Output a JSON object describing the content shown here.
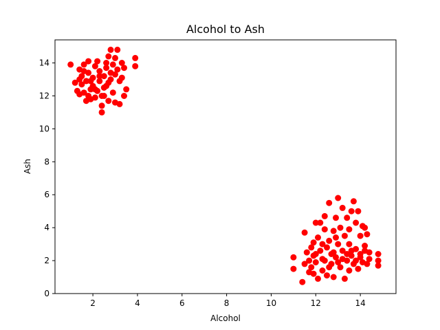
{
  "chart_data": {
    "type": "scatter",
    "title": "Alcohol to Ash",
    "xlabel": "Alcohol",
    "ylabel": "Ash",
    "xlim": [
      0.3,
      15.6
    ],
    "ylim": [
      0,
      15.4
    ],
    "xticks": [
      2,
      4,
      6,
      8,
      10,
      12,
      14
    ],
    "yticks": [
      0,
      2,
      4,
      6,
      8,
      10,
      12,
      14
    ],
    "grid": false,
    "marker_color": "#ff0000",
    "series": [
      {
        "points": [
          [
            1.0,
            13.9
          ],
          [
            1.2,
            12.8
          ],
          [
            1.3,
            12.3
          ],
          [
            1.4,
            13.6
          ],
          [
            1.4,
            12.1
          ],
          [
            1.5,
            13.2
          ],
          [
            1.5,
            12.7
          ],
          [
            1.6,
            13.9
          ],
          [
            1.6,
            12.2
          ],
          [
            1.7,
            11.7
          ],
          [
            1.7,
            12.9
          ],
          [
            1.8,
            13.4
          ],
          [
            1.8,
            14.1
          ],
          [
            1.9,
            12.4
          ],
          [
            1.9,
            11.8
          ],
          [
            2.0,
            13.1
          ],
          [
            2.0,
            12.6
          ],
          [
            2.1,
            13.8
          ],
          [
            2.1,
            11.9
          ],
          [
            2.2,
            12.3
          ],
          [
            2.2,
            14.1
          ],
          [
            2.3,
            12.9
          ],
          [
            2.3,
            13.5
          ],
          [
            2.4,
            12.0
          ],
          [
            2.4,
            11.4
          ],
          [
            2.4,
            11.0
          ],
          [
            2.5,
            13.2
          ],
          [
            2.5,
            12.5
          ],
          [
            2.6,
            14.0
          ],
          [
            2.6,
            13.7
          ],
          [
            2.7,
            12.8
          ],
          [
            2.7,
            11.7
          ],
          [
            2.8,
            14.8
          ],
          [
            2.8,
            13.4
          ],
          [
            2.9,
            12.2
          ],
          [
            2.9,
            13.9
          ],
          [
            3.0,
            14.3
          ],
          [
            3.0,
            11.6
          ],
          [
            3.1,
            14.8
          ],
          [
            3.1,
            13.6
          ],
          [
            3.2,
            12.9
          ],
          [
            3.2,
            11.5
          ],
          [
            3.3,
            14.0
          ],
          [
            3.3,
            13.1
          ],
          [
            3.4,
            13.7
          ],
          [
            3.4,
            12.0
          ],
          [
            3.5,
            12.4
          ],
          [
            3.9,
            14.3
          ],
          [
            3.9,
            13.8
          ],
          [
            1.4,
            13.0
          ],
          [
            1.6,
            13.5
          ],
          [
            1.9,
            12.9
          ],
          [
            2.1,
            12.4
          ],
          [
            2.3,
            13.2
          ],
          [
            2.6,
            12.6
          ],
          [
            2.8,
            13.0
          ],
          [
            3.0,
            13.3
          ],
          [
            2.5,
            12.0
          ],
          [
            1.8,
            12.0
          ],
          [
            2.7,
            14.4
          ]
        ]
      },
      {
        "points": [
          [
            11.0,
            2.2
          ],
          [
            11.0,
            1.5
          ],
          [
            11.4,
            0.7
          ],
          [
            11.5,
            3.7
          ],
          [
            11.5,
            1.8
          ],
          [
            11.6,
            2.5
          ],
          [
            11.7,
            2.0
          ],
          [
            11.7,
            1.3
          ],
          [
            11.8,
            2.8
          ],
          [
            11.8,
            1.6
          ],
          [
            11.9,
            3.1
          ],
          [
            11.9,
            2.3
          ],
          [
            12.0,
            4.3
          ],
          [
            12.0,
            1.9
          ],
          [
            12.1,
            0.9
          ],
          [
            12.1,
            3.4
          ],
          [
            12.2,
            4.3
          ],
          [
            12.2,
            2.6
          ],
          [
            12.3,
            1.4
          ],
          [
            12.3,
            2.1
          ],
          [
            12.4,
            3.9
          ],
          [
            12.4,
            4.7
          ],
          [
            12.5,
            2.8
          ],
          [
            12.5,
            1.1
          ],
          [
            12.6,
            5.5
          ],
          [
            12.6,
            3.2
          ],
          [
            12.7,
            1.8
          ],
          [
            12.7,
            2.4
          ],
          [
            12.8,
            3.8
          ],
          [
            12.8,
            1.0
          ],
          [
            12.9,
            4.6
          ],
          [
            12.9,
            2.2
          ],
          [
            13.0,
            5.8
          ],
          [
            13.0,
            3.0
          ],
          [
            13.1,
            1.6
          ],
          [
            13.1,
            4.0
          ],
          [
            13.2,
            5.2
          ],
          [
            13.2,
            2.6
          ],
          [
            13.3,
            0.9
          ],
          [
            13.3,
            3.5
          ],
          [
            13.4,
            2.0
          ],
          [
            13.4,
            4.6
          ],
          [
            13.5,
            1.4
          ],
          [
            13.5,
            3.0
          ],
          [
            13.6,
            5.0
          ],
          [
            13.6,
            2.3
          ],
          [
            13.7,
            5.6
          ],
          [
            13.7,
            1.8
          ],
          [
            13.8,
            4.3
          ],
          [
            13.8,
            2.7
          ],
          [
            13.9,
            5.0
          ],
          [
            13.9,
            1.5
          ],
          [
            14.0,
            3.5
          ],
          [
            14.0,
            2.2
          ],
          [
            14.1,
            4.1
          ],
          [
            14.1,
            1.9
          ],
          [
            14.2,
            2.6
          ],
          [
            14.2,
            4.0
          ],
          [
            14.3,
            3.6
          ],
          [
            14.3,
            1.8
          ],
          [
            14.4,
            2.5
          ],
          [
            14.4,
            2.1
          ],
          [
            14.8,
            2.4
          ],
          [
            14.8,
            1.7
          ],
          [
            14.8,
            2.0
          ],
          [
            12.0,
            2.4
          ],
          [
            12.4,
            2.0
          ],
          [
            12.8,
            2.5
          ],
          [
            13.2,
            2.1
          ],
          [
            13.6,
            2.6
          ],
          [
            14.0,
            2.4
          ],
          [
            12.6,
            1.6
          ],
          [
            13.0,
            1.9
          ],
          [
            13.4,
            2.4
          ],
          [
            13.8,
            2.0
          ],
          [
            11.9,
            1.2
          ],
          [
            12.3,
            3.0
          ],
          [
            12.9,
            3.4
          ],
          [
            13.5,
            3.9
          ],
          [
            14.2,
            2.9
          ]
        ]
      }
    ]
  }
}
